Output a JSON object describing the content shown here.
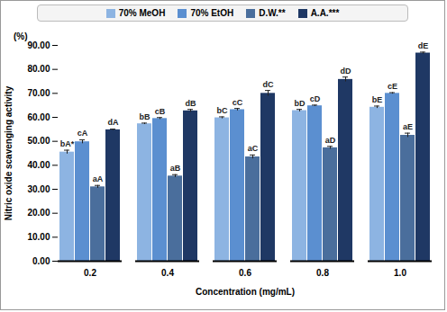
{
  "chart_data": {
    "type": "bar",
    "categories": [
      "0.2",
      "0.4",
      "0.6",
      "0.8",
      "1.0"
    ],
    "series": [
      {
        "name": "70% MeOH",
        "color": "#8db4e2",
        "values": [
          45.5,
          57.3,
          59.8,
          62.8,
          64.2
        ],
        "errors": [
          0.8,
          0.3,
          0.4,
          0.5,
          0.5
        ],
        "annotations": [
          "bA*",
          "bB",
          "bC",
          "bD",
          "bE"
        ]
      },
      {
        "name": "70% EtOH",
        "color": "#5b8fd0",
        "values": [
          49.8,
          59.5,
          63.2,
          64.8,
          70.0
        ],
        "errors": [
          0.8,
          0.4,
          0.5,
          0.3,
          0.3
        ],
        "annotations": [
          "cA",
          "cB",
          "cC",
          "cD",
          "cE"
        ]
      },
      {
        "name": "D.W.**",
        "color": "#4a6e9c",
        "values": [
          31.0,
          35.5,
          43.5,
          47.3,
          52.5
        ],
        "errors": [
          0.6,
          0.6,
          0.8,
          0.6,
          0.9
        ],
        "annotations": [
          "aA",
          "aB",
          "aC",
          "aD",
          "aE"
        ]
      },
      {
        "name": "A.A.***",
        "color": "#1f3864",
        "values": [
          54.8,
          62.7,
          70.0,
          75.8,
          86.8
        ],
        "errors": [
          0.3,
          0.6,
          1.2,
          1.0,
          0.4
        ],
        "annotations": [
          "dA",
          "dB",
          "dC",
          "dD",
          "dE"
        ]
      }
    ],
    "xlabel": "Concentration (mg/mL)",
    "ylabel": "Nitric oxide scavenging activity",
    "annotations": [
      "(%)"
    ],
    "ylim": [
      0,
      90
    ],
    "yticks": [
      {
        "value": 0,
        "label": "0.00"
      },
      {
        "value": 10,
        "label": "10.00"
      },
      {
        "value": 20,
        "label": "20.00"
      },
      {
        "value": 30,
        "label": "30.00"
      },
      {
        "value": 40,
        "label": "40.00"
      },
      {
        "value": 50,
        "label": "50.00"
      },
      {
        "value": 60,
        "label": "60.00"
      },
      {
        "value": 70,
        "label": "70.00"
      },
      {
        "value": 80,
        "label": "80.00"
      },
      {
        "value": 90,
        "label": "90.00"
      }
    ],
    "legend": "top",
    "grid": false,
    "data_labels": false
  }
}
